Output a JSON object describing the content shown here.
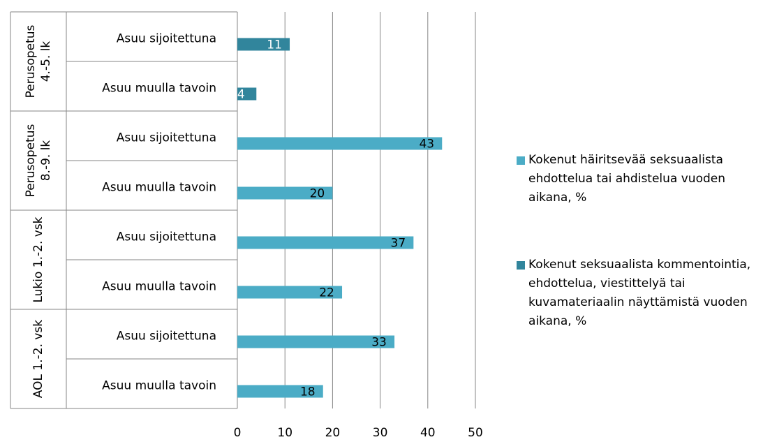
{
  "chart_data": {
    "type": "bar",
    "orientation": "horizontal",
    "groups": [
      "Perusopetus 4.-5. lk",
      "Perusopetus 8.-9. lk",
      "Lukio 1.-2. vsk",
      "AOL 1.-2. vsk"
    ],
    "categories": [
      "Asuu sijoitettuna",
      "Asuu muulla tavoin",
      "Asuu sijoitettuna",
      "Asuu muulla tavoin",
      "Asuu sijoitettuna",
      "Asuu muulla tavoin",
      "Asuu sijoitettuna",
      "Asuu muulla tavoin"
    ],
    "series": [
      {
        "name": "Kokenut häiritsevää seksuaalista ehdottelua tai ahdistelua vuoden aikana, %",
        "color": "#4bacc6",
        "label_color": "#000000",
        "values": [
          null,
          null,
          43,
          20,
          37,
          22,
          33,
          18
        ]
      },
      {
        "name": "Kokenut seksuaalista kommentointia, ehdottelua, viestittelyä tai kuvamateriaalin näyttämistä vuoden aikana, %",
        "color": "#31859c",
        "label_color": "#ffffff",
        "values": [
          11,
          4,
          null,
          null,
          null,
          null,
          null,
          null
        ]
      }
    ],
    "xlim": [
      0,
      50
    ],
    "xticks": [
      0,
      10,
      20,
      30,
      40,
      50
    ],
    "grid": true,
    "legend": "right"
  }
}
